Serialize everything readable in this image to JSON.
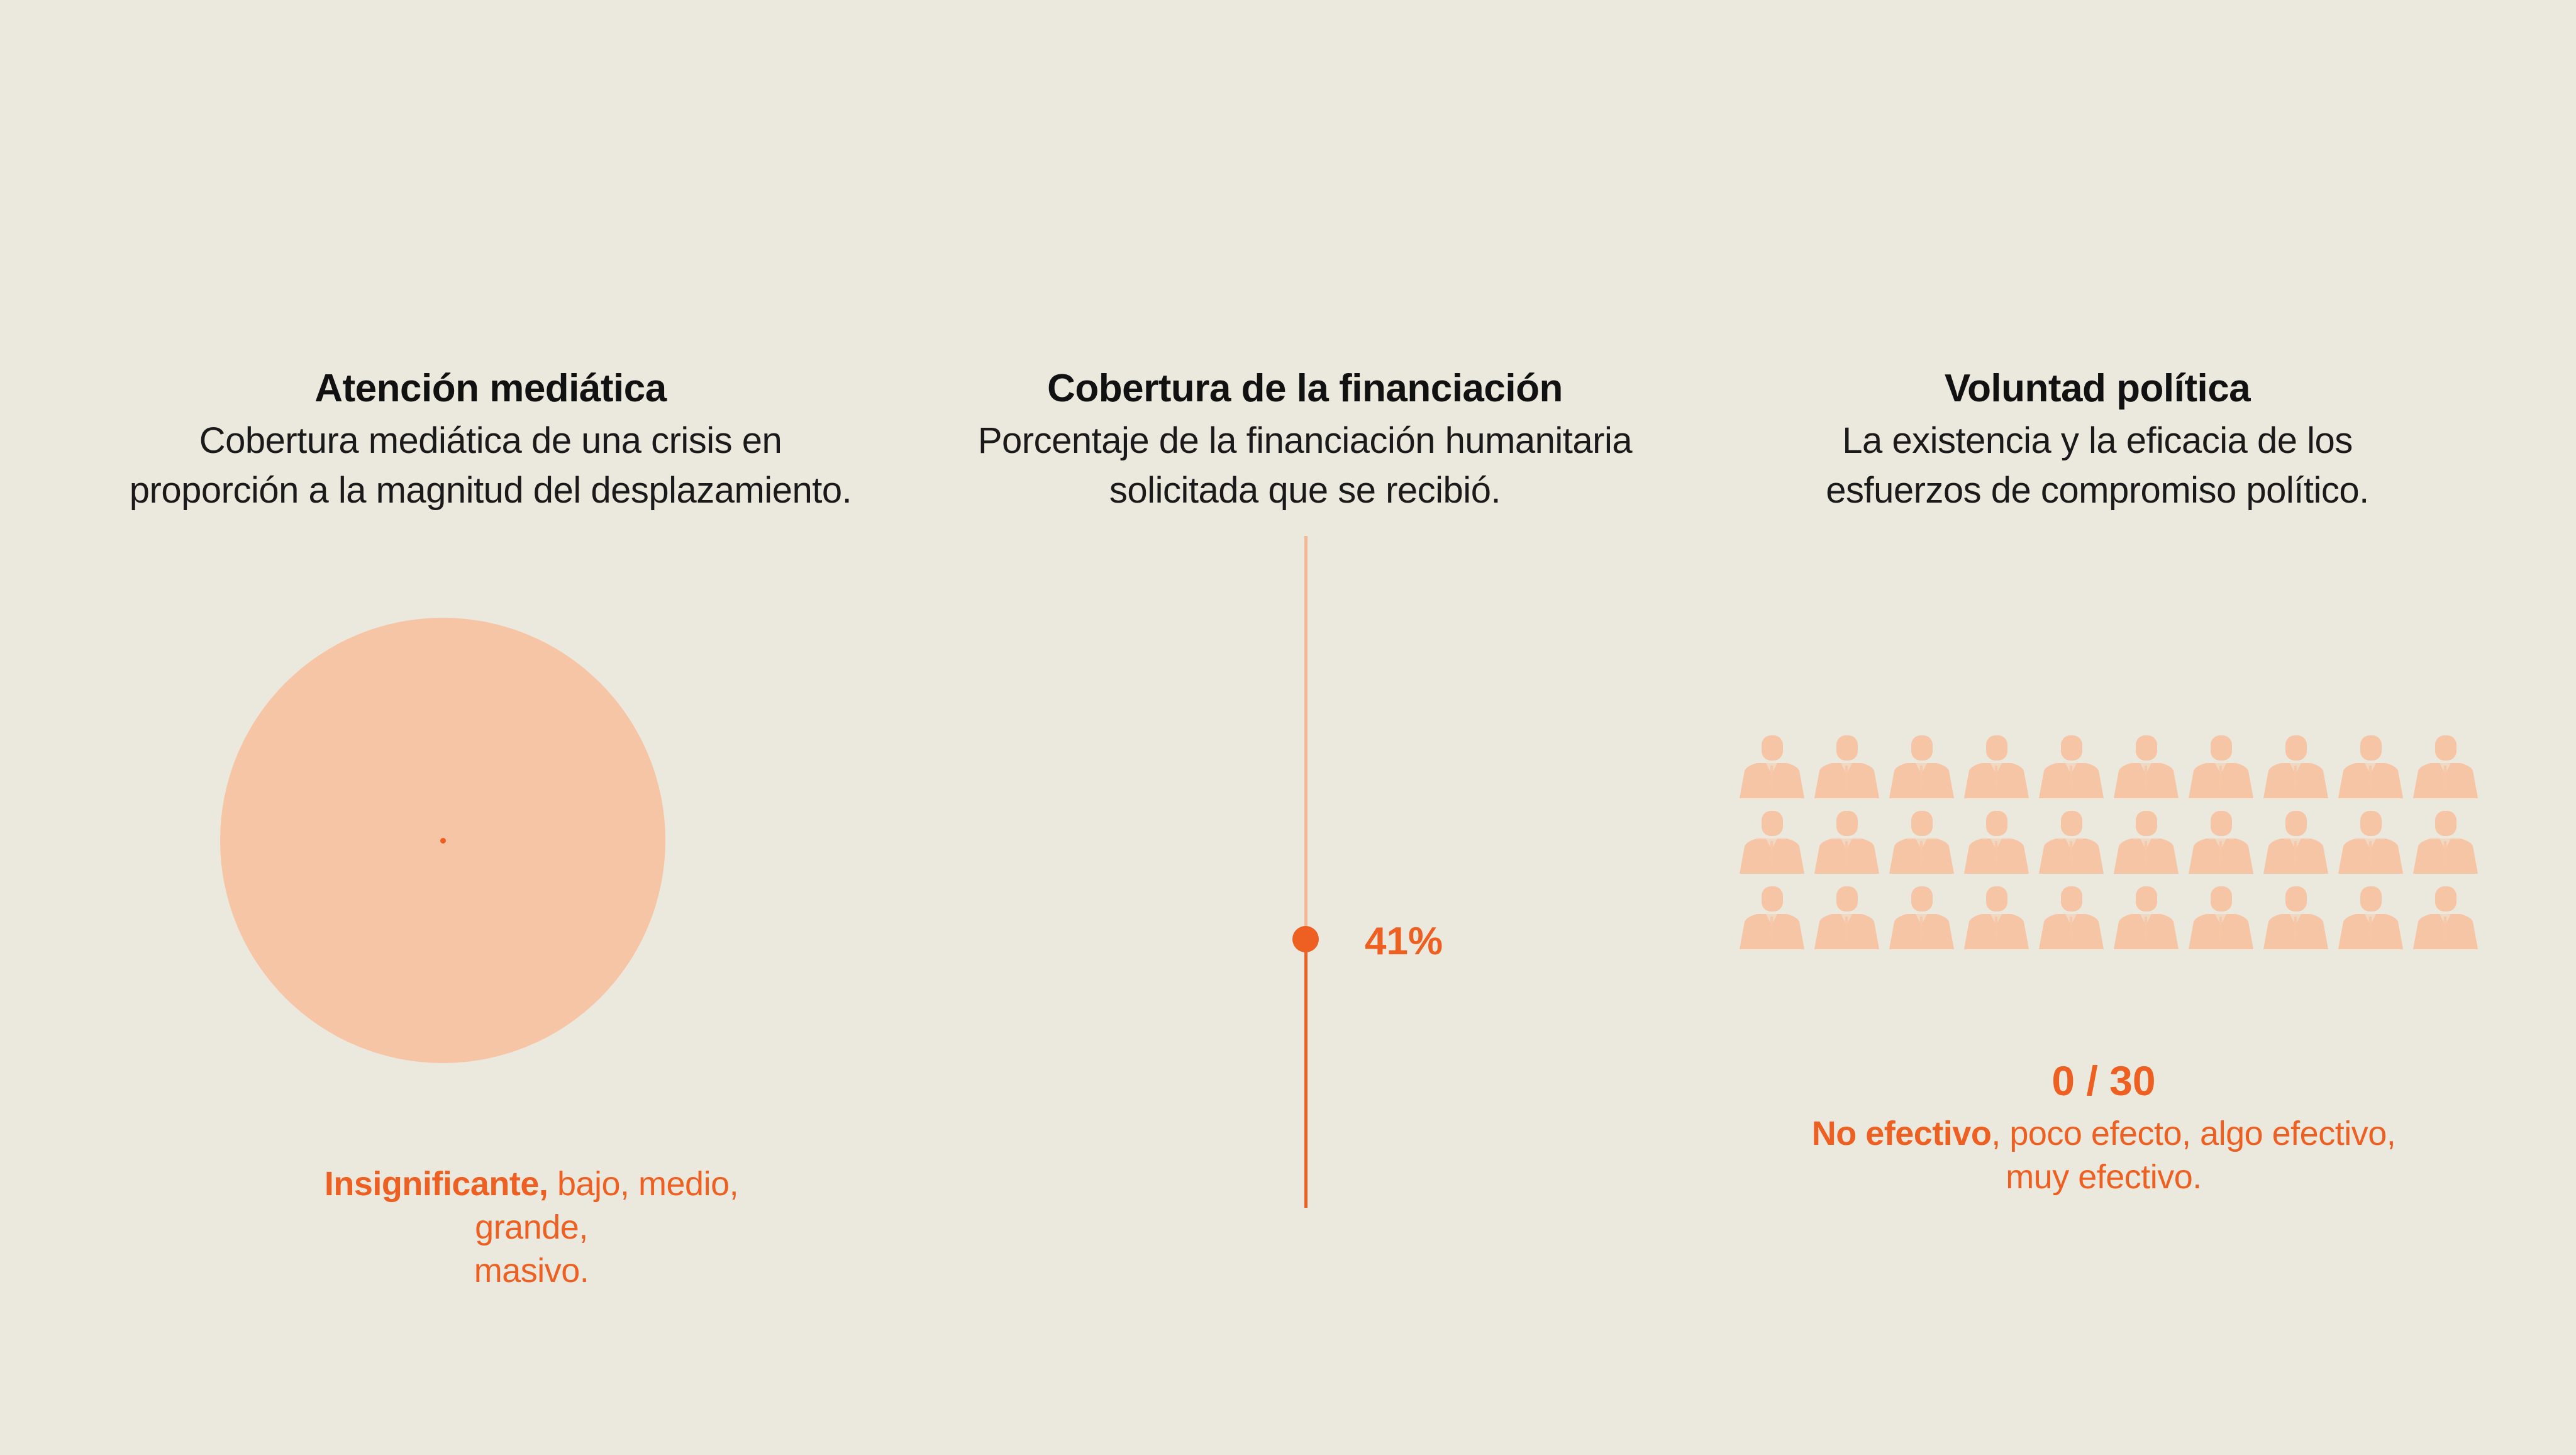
{
  "panels": {
    "media": {
      "title": "Atención mediática",
      "subtitle_line1": "Cobertura mediática de una crisis en",
      "subtitle_line2": "proporción a la magnitud del desplazamiento.",
      "scale_active": "Insignificante,",
      "scale_rest_line1": " bajo, medio, grande,",
      "scale_rest_line2": "masivo."
    },
    "funding": {
      "title": "Cobertura de la financiación",
      "subtitle_line1": "Porcentaje de la financiación humanitaria",
      "subtitle_line2": "solicitada que se recibió.",
      "value_label": "41%",
      "value_fraction": 0.41
    },
    "politics": {
      "title": "Voluntad política",
      "subtitle_line1": "La existencia y la eficacia de los",
      "subtitle_line2": "esfuerzos de compromiso político.",
      "score": "0 / 30",
      "scale_active": "No efectivo",
      "scale_rest_line1": ", poco efecto, algo efectivo,",
      "scale_rest_line2": "muy efectivo.",
      "icon_total": 30,
      "icon_filled": 0
    }
  },
  "colors": {
    "background": "#ebe8dd",
    "accent": "#ee5f22",
    "light_accent": "#f6c5a5",
    "track_light": "#f3b795",
    "text": "#111111"
  },
  "icons": {
    "person": "person-in-suit-icon"
  }
}
